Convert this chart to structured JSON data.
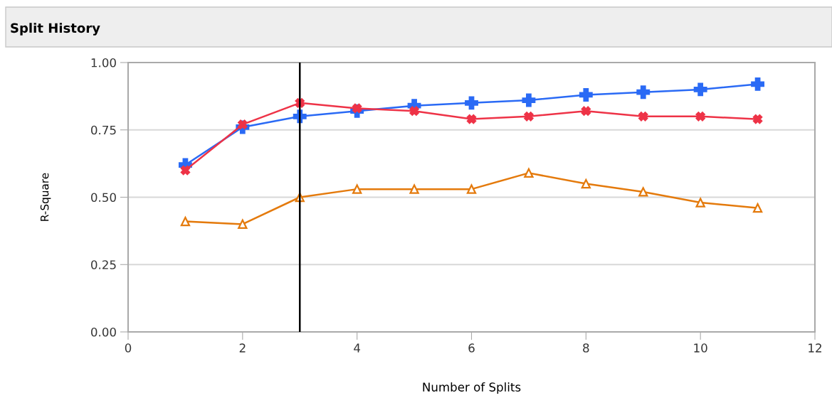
{
  "chart_data": {
    "type": "line",
    "title": "Split History",
    "xlabel": "Number of Splits",
    "ylabel": "R-Square",
    "x": [
      1,
      2,
      3,
      4,
      5,
      6,
      7,
      8,
      9,
      10,
      11
    ],
    "series": [
      {
        "color": "#2a6af5",
        "marker": "plus",
        "values": [
          0.62,
          0.76,
          0.8,
          0.82,
          0.84,
          0.85,
          0.86,
          0.88,
          0.89,
          0.9,
          0.92
        ]
      },
      {
        "color": "#ee3347",
        "marker": "cross",
        "values": [
          0.6,
          0.77,
          0.85,
          0.83,
          0.82,
          0.79,
          0.8,
          0.82,
          0.8,
          0.8,
          0.79
        ]
      },
      {
        "color": "#e47a0c",
        "marker": "triangle",
        "values": [
          0.41,
          0.4,
          0.5,
          0.53,
          0.53,
          0.53,
          0.59,
          0.55,
          0.52,
          0.48,
          0.46
        ]
      }
    ],
    "xlim": [
      0,
      12
    ],
    "xticks": [
      0,
      2,
      4,
      6,
      8,
      10,
      12
    ],
    "ylim": [
      0,
      1
    ],
    "yticks": [
      {
        "value": 0,
        "label": "0.00"
      },
      {
        "value": 0.25,
        "label": "0.25"
      },
      {
        "value": 0.5,
        "label": "0.50"
      },
      {
        "value": 0.75,
        "label": "0.75"
      },
      {
        "value": 1,
        "label": "1.00"
      }
    ],
    "grid": "y",
    "legend": false,
    "ref_lines": [
      {
        "axis": "x",
        "value": 3,
        "color": "#000000"
      }
    ]
  }
}
